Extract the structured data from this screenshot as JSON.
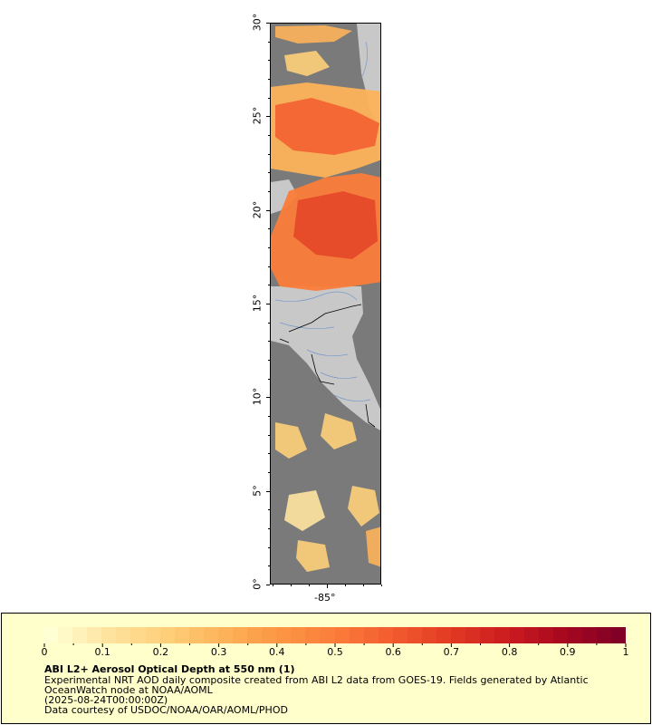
{
  "map": {
    "lat_ticks": [
      {
        "label": "30°",
        "lat": 30
      },
      {
        "label": "25°",
        "lat": 25
      },
      {
        "label": "20°",
        "lat": 20
      },
      {
        "label": "15°",
        "lat": 15
      },
      {
        "label": "10°",
        "lat": 10
      },
      {
        "label": "5°",
        "lat": 5
      },
      {
        "label": "0°",
        "lat": 0
      }
    ],
    "lon_ticks": [
      {
        "label": "-85°",
        "lon": -85
      }
    ],
    "colors": {
      "ocean_nodata": "#7a7a7a",
      "land": "#c8c8c8",
      "rivers": "#7799cc",
      "borders": "#000000"
    }
  },
  "legend": {
    "colorbar_ticks": [
      "0",
      "0.1",
      "0.2",
      "0.3",
      "0.4",
      "0.5",
      "0.6",
      "0.7",
      "0.8",
      "0.9",
      "1"
    ],
    "colorbar_colors": [
      "#ffffd4",
      "#fee4a0",
      "#fed07a",
      "#fdb35a",
      "#fc9744",
      "#fb7d3b",
      "#f25c2e",
      "#e33c24",
      "#cc1c20",
      "#a8081f",
      "#800026"
    ],
    "title": "ABI L2+ Aerosol Optical Depth at 550 nm (1)",
    "line1": "Experimental NRT AOD daily composite created from ABI L2 data from GOES-19. Fields generated by Atlantic",
    "line2": "OceanWatch node at NOAA/AOML",
    "line3": "(2025-08-24T00:00:00Z)",
    "line4": "Data courtesy of USDOC/NOAA/OAR/AOML/PHOD"
  }
}
